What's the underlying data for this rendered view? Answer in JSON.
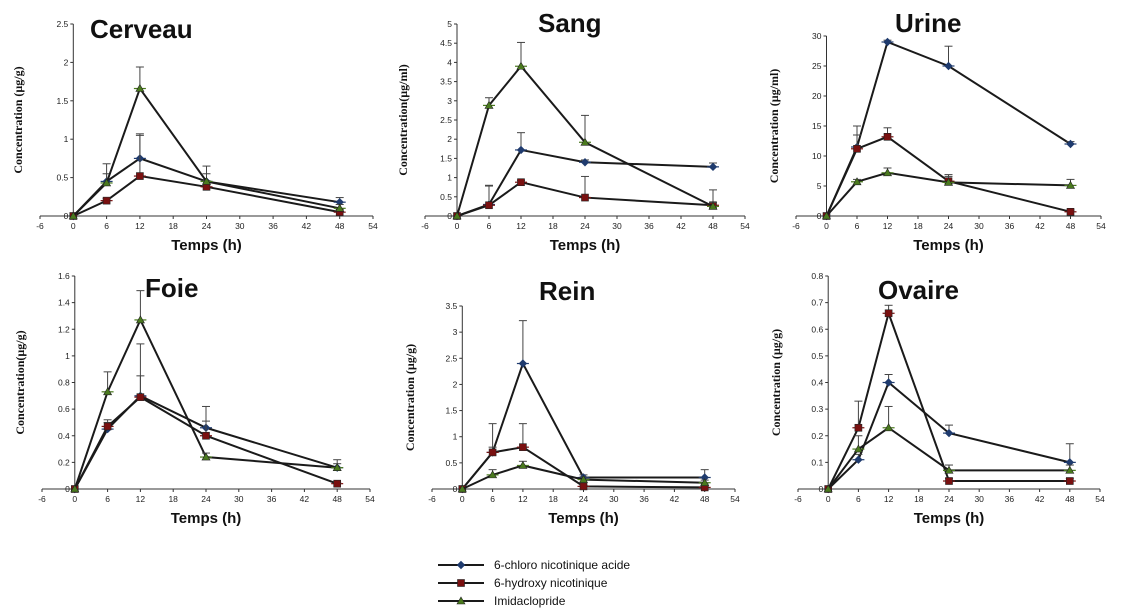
{
  "legend": {
    "items": [
      {
        "name": "6-chloro nicotinique acide",
        "color": "#1f3b6e",
        "marker": "diamond"
      },
      {
        "name": "6-hydroxy nicotinique",
        "color": "#7a1010",
        "marker": "square"
      },
      {
        "name": "Imidaclopride",
        "color": "#4a7a1e",
        "marker": "triangle"
      }
    ]
  },
  "chart_data": [
    {
      "type": "line",
      "title": "Cerveau",
      "xlabel": "Temps (h)",
      "ylabel": "Concentration (µg/g)",
      "x": [
        0,
        6,
        12,
        24,
        48
      ],
      "xlim": [
        -6,
        54
      ],
      "xticks": [
        -6,
        0,
        6,
        12,
        18,
        24,
        30,
        36,
        42,
        48,
        54
      ],
      "ylim": [
        0,
        2.5
      ],
      "yticks": [
        "0",
        "0.5",
        "1",
        "1.5",
        "2",
        "2.5"
      ],
      "series": [
        {
          "name": "6-chloro nicotinique acide",
          "values": [
            0,
            0.45,
            0.75,
            0.45,
            0.18
          ],
          "errors": [
            0,
            0.1,
            0.3,
            0.1,
            0.06
          ]
        },
        {
          "name": "6-hydroxy nicotinique",
          "values": [
            0,
            0.2,
            0.52,
            0.38,
            0.05
          ],
          "errors": [
            0,
            0.03,
            0.55,
            0.08,
            0.03
          ]
        },
        {
          "name": "Imidaclopride",
          "values": [
            0,
            0.43,
            1.66,
            0.45,
            0.1
          ],
          "errors": [
            0,
            0.25,
            0.28,
            0.2,
            0.05
          ]
        }
      ]
    },
    {
      "type": "line",
      "title": "Sang",
      "xlabel": "Temps (h)",
      "ylabel": "Concentration(µg/ml)",
      "x": [
        0,
        6,
        12,
        24,
        48
      ],
      "xlim": [
        -6,
        54
      ],
      "xticks": [
        -6,
        0,
        6,
        12,
        18,
        24,
        30,
        36,
        42,
        48,
        54
      ],
      "ylim": [
        0,
        5
      ],
      "yticks": [
        "0",
        "0.5",
        "1",
        "1.5",
        "2",
        "2.5",
        "3",
        "3.5",
        "4",
        "4.5",
        "5"
      ],
      "series": [
        {
          "name": "6-chloro nicotinique acide",
          "values": [
            0,
            0.3,
            1.72,
            1.4,
            1.28
          ],
          "errors": [
            0,
            0.5,
            0.45,
            0.06,
            0.1
          ]
        },
        {
          "name": "6-hydroxy nicotinique",
          "values": [
            0,
            0.28,
            0.88,
            0.48,
            0.28
          ],
          "errors": [
            0,
            0.5,
            0.05,
            0.55,
            0.4
          ]
        },
        {
          "name": "Imidaclopride",
          "values": [
            0,
            2.88,
            3.9,
            1.92,
            0.25
          ],
          "errors": [
            0,
            0.2,
            0.62,
            0.7,
            0.1
          ]
        }
      ]
    },
    {
      "type": "line",
      "title": "Urine",
      "xlabel": "Temps (h)",
      "ylabel": "Concentration (µg/ml)",
      "x": [
        0,
        6,
        12,
        24,
        48
      ],
      "xlim": [
        -6,
        54
      ],
      "xticks": [
        -6,
        0,
        6,
        12,
        18,
        24,
        30,
        36,
        42,
        48,
        54
      ],
      "ylim": [
        0,
        30
      ],
      "yticks": [
        "0",
        "5",
        "10",
        "15",
        "20",
        "25",
        "30"
      ],
      "series": [
        {
          "name": "6-chloro nicotinique acide",
          "values": [
            0,
            11.5,
            29,
            25,
            12
          ],
          "errors": [
            0,
            2,
            0.3,
            3.3,
            0.4
          ]
        },
        {
          "name": "6-hydroxy nicotinique",
          "values": [
            0,
            11.2,
            13.2,
            5.8,
            0.7
          ],
          "errors": [
            0,
            3.8,
            1.5,
            0.8,
            0.3
          ]
        },
        {
          "name": "Imidaclopride",
          "values": [
            0,
            5.7,
            7.2,
            5.6,
            5.1
          ],
          "errors": [
            0,
            0.4,
            0.8,
            1.3,
            1
          ]
        }
      ]
    },
    {
      "type": "line",
      "title": "Foie",
      "xlabel": "Temps (h)",
      "ylabel": "Concentration(µg/g)",
      "x": [
        0,
        6,
        12,
        24,
        48
      ],
      "xlim": [
        -6,
        54
      ],
      "xticks": [
        -6,
        0,
        6,
        12,
        18,
        24,
        30,
        36,
        42,
        48,
        54
      ],
      "ylim": [
        0,
        1.6
      ],
      "yticks": [
        "0",
        "0.2",
        "0.4",
        "0.6",
        "0.8",
        "1",
        "1.2",
        "1.4",
        "1.6"
      ],
      "series": [
        {
          "name": "6-chloro nicotinique acide",
          "values": [
            0,
            0.45,
            0.7,
            0.46,
            0.16
          ],
          "errors": [
            0,
            0.05,
            0.15,
            0.05,
            0.03
          ]
        },
        {
          "name": "6-hydroxy nicotinique",
          "values": [
            0,
            0.47,
            0.69,
            0.4,
            0.04
          ],
          "errors": [
            0,
            0.05,
            0.4,
            0.22,
            0.01
          ]
        },
        {
          "name": "Imidaclopride",
          "values": [
            0,
            0.73,
            1.27,
            0.24,
            0.16
          ],
          "errors": [
            0,
            0.15,
            0.22,
            0.03,
            0.06
          ]
        }
      ]
    },
    {
      "type": "line",
      "title": "Rein",
      "xlabel": "Temps (h)",
      "ylabel": "Concentration (µg/g)",
      "x": [
        0,
        6,
        12,
        24,
        48
      ],
      "xlim": [
        -6,
        54
      ],
      "xticks": [
        -6,
        0,
        6,
        12,
        18,
        24,
        30,
        36,
        42,
        48,
        54
      ],
      "ylim": [
        0,
        3.5
      ],
      "yticks": [
        "0",
        "0.5",
        "1",
        "1.5",
        "2",
        "2.5",
        "3",
        "3.5"
      ],
      "series": [
        {
          "name": "6-chloro nicotinique acide",
          "values": [
            0,
            0.7,
            2.4,
            0.22,
            0.22
          ],
          "errors": [
            0,
            0.1,
            0.82,
            0.05,
            0.15
          ]
        },
        {
          "name": "6-hydroxy nicotinique",
          "values": [
            0,
            0.7,
            0.8,
            0.05,
            0.03
          ],
          "errors": [
            0,
            0.55,
            0.45,
            0.02,
            0.02
          ]
        },
        {
          "name": "Imidaclopride",
          "values": [
            0,
            0.27,
            0.45,
            0.18,
            0.12
          ],
          "errors": [
            0,
            0.1,
            0.08,
            0.05,
            0.05
          ]
        }
      ]
    },
    {
      "type": "line",
      "title": "Ovaire",
      "xlabel": "Temps (h)",
      "ylabel": "Concentration (µg/g)",
      "x": [
        0,
        6,
        12,
        24,
        48
      ],
      "xlim": [
        -6,
        54
      ],
      "xticks": [
        -6,
        0,
        6,
        12,
        18,
        24,
        30,
        36,
        42,
        48,
        54
      ],
      "ylim": [
        0,
        0.8
      ],
      "yticks": [
        "0",
        "0.1",
        "0.2",
        "0.3",
        "0.4",
        "0.5",
        "0.6",
        "0.7",
        "0.8"
      ],
      "series": [
        {
          "name": "6-chloro nicotinique acide",
          "values": [
            0,
            0.11,
            0.4,
            0.21,
            0.1
          ],
          "errors": [
            0,
            0.02,
            0.03,
            0.03,
            0.07
          ]
        },
        {
          "name": "6-hydroxy nicotinique",
          "values": [
            0,
            0.23,
            0.66,
            0.03,
            0.03
          ],
          "errors": [
            0,
            0.1,
            0.03,
            0.01,
            0.01
          ]
        },
        {
          "name": "Imidaclopride",
          "values": [
            0,
            0.15,
            0.23,
            0.07,
            0.07
          ],
          "errors": [
            0,
            0.05,
            0.08,
            0.02,
            0.02
          ]
        }
      ]
    }
  ]
}
